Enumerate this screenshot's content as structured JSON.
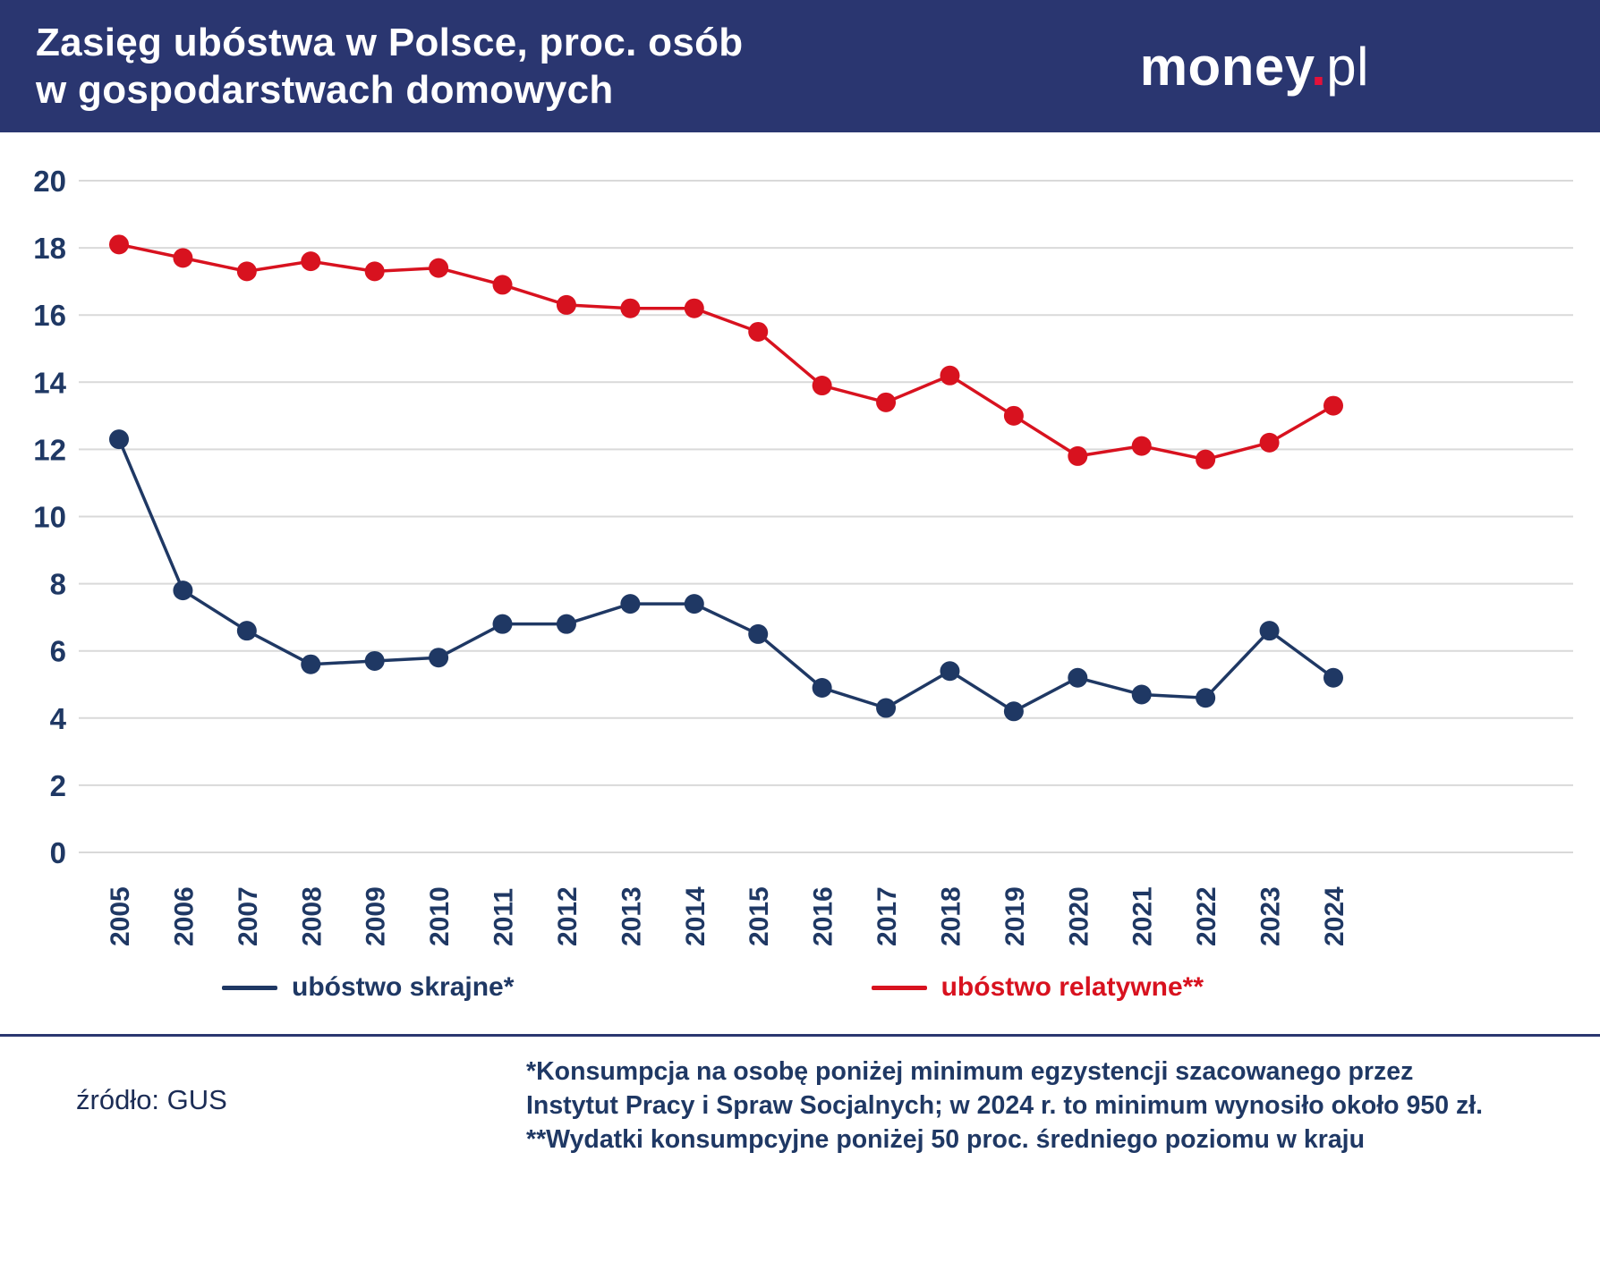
{
  "header": {
    "title_line1": "Zasięg ubóstwa w Polsce, proc. osób",
    "title_line2": "w gospodarstwach domowych",
    "logo": {
      "part1": "money",
      "dot": ".",
      "part2": "pl"
    }
  },
  "chart_data": {
    "type": "line",
    "title": "Zasięg ubóstwa w Polsce, proc. osób w gospodarstwach domowych",
    "categories": [
      "2005",
      "2006",
      "2007",
      "2008",
      "2009",
      "2010",
      "2011",
      "2012",
      "2013",
      "2014",
      "2015",
      "2016",
      "2017",
      "2018",
      "2019",
      "2020",
      "2021",
      "2022",
      "2023",
      "2024"
    ],
    "series": [
      {
        "id": "skrajne",
        "name": "ubóstwo skrajne*",
        "color": "#1f3864",
        "values": [
          12.3,
          7.8,
          6.6,
          5.6,
          5.7,
          5.8,
          6.8,
          6.8,
          7.4,
          7.4,
          6.5,
          4.9,
          4.3,
          5.4,
          4.2,
          5.2,
          4.7,
          4.6,
          6.6,
          5.2
        ]
      },
      {
        "id": "relatywne",
        "name": "ubóstwo relatywne**",
        "color": "#d8121f",
        "values": [
          18.1,
          17.7,
          17.3,
          17.6,
          17.3,
          17.4,
          16.9,
          16.3,
          16.2,
          16.2,
          15.5,
          13.9,
          13.4,
          14.2,
          13.0,
          11.8,
          12.1,
          11.7,
          12.2,
          13.3
        ]
      }
    ],
    "ylim": [
      0,
      20
    ],
    "ytick_step": 2,
    "grid": true,
    "legend_position": "bottom",
    "xlabel": "",
    "ylabel": ""
  },
  "footer": {
    "source": "źródło: GUS",
    "notes": [
      "*Konsumpcja na osobę poniżej minimum egzystencji szacowanego przez",
      "Instytut Pracy i Spraw Socjalnych; w 2024 r. to minimum wynosiło około 950 zł.",
      "**Wydatki konsumpcyjne poniżej 50 proc. średniego poziomu w kraju"
    ]
  },
  "colors": {
    "header_bg": "#2a3670",
    "navy": "#1f3864",
    "red": "#d8121f",
    "grid": "#d9d9d9",
    "logo_dot": "#e4113a",
    "divider": "#2a3670"
  }
}
